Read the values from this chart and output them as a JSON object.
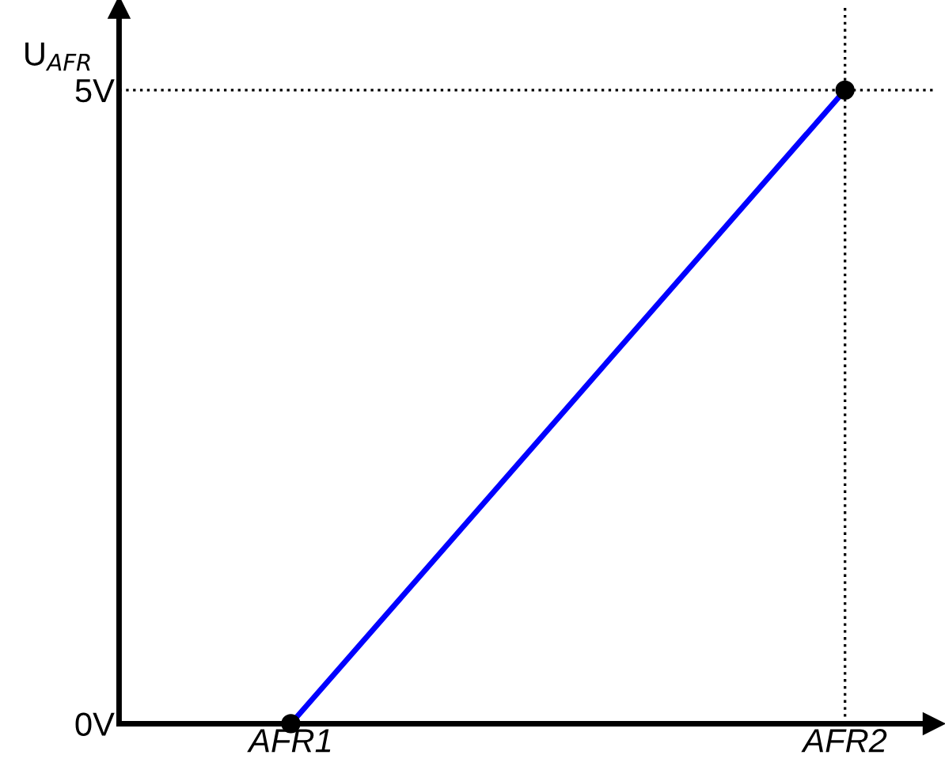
{
  "chart_data": {
    "type": "line",
    "ylabel": "U$_{AFR}$",
    "categories": [
      "AFR1",
      "AFR2"
    ],
    "series": [
      {
        "color": "#0000ff",
        "values": [
          0,
          5
        ]
      },
      {
        "type": "scatter",
        "color": "#000000",
        "values": [
          0,
          5
        ]
      }
    ],
    "ylim": [
      0,
      5.65
    ],
    "yticks": [
      {
        "value": 0,
        "label": "0V"
      },
      {
        "value": 5,
        "label": "5V"
      }
    ],
    "ref_lines": [
      {
        "axis": "y",
        "value": 5,
        "color": "#000000",
        "line_style": "dotted"
      },
      {
        "axis": "x",
        "value": "AFR2",
        "color": "#000000",
        "line_style": "dotted"
      }
    ],
    "grid": false
  }
}
